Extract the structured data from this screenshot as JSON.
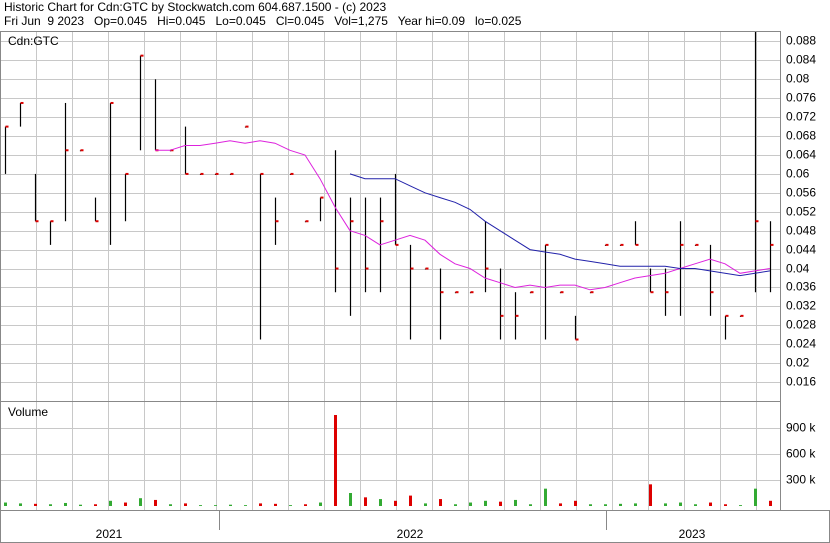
{
  "chart_data": {
    "type": "ohlc",
    "title": "Historic Chart for Cdn:GTC by Stockwatch.com 604.687.1500 - (c) 2023",
    "subtitle": "Fri Jun  9 2023   Op=0.045   Hi=0.045   Lo=0.045   Cl=0.045   Vol=1,275   Year hi=0.09   lo=0.025",
    "symbol_label": "Cdn:GTC",
    "volume_label": "Volume",
    "year_labels": [
      "2021",
      "2022",
      "2023"
    ],
    "high": [
      0.07,
      0.075,
      0.06,
      0.05,
      0.075,
      0.065,
      0.055,
      0.075,
      0.06,
      0.085,
      0.08,
      0.065,
      0.07,
      0.06,
      0.06,
      0.06,
      0.07,
      0.06,
      0.055,
      0.06,
      0.05,
      0.055,
      0.065,
      0.055,
      0.055,
      0.055,
      0.06,
      0.045,
      0.04,
      0.04,
      0.035,
      0.035,
      0.05,
      0.04,
      0.035,
      0.035,
      0.045,
      0.035,
      0.03,
      0.035,
      0.045,
      0.045,
      0.05,
      0.04,
      0.04,
      0.05,
      0.045,
      0.045,
      0.03,
      0.03,
      0.09,
      0.05
    ],
    "low": [
      0.06,
      0.07,
      0.05,
      0.045,
      0.05,
      0.065,
      0.05,
      0.045,
      0.05,
      0.065,
      0.065,
      0.065,
      0.06,
      0.06,
      0.06,
      0.06,
      0.07,
      0.025,
      0.045,
      0.06,
      0.05,
      0.05,
      0.035,
      0.03,
      0.035,
      0.035,
      0.045,
      0.025,
      0.04,
      0.025,
      0.035,
      0.035,
      0.035,
      0.025,
      0.025,
      0.035,
      0.025,
      0.035,
      0.025,
      0.035,
      0.045,
      0.045,
      0.045,
      0.035,
      0.03,
      0.03,
      0.045,
      0.03,
      0.025,
      0.03,
      0.035,
      0.035
    ],
    "close": [
      0.07,
      0.075,
      0.05,
      0.05,
      0.065,
      0.065,
      0.05,
      0.075,
      0.06,
      0.085,
      0.065,
      0.065,
      0.06,
      0.06,
      0.06,
      0.06,
      0.07,
      0.06,
      0.05,
      0.06,
      0.05,
      0.055,
      0.04,
      0.05,
      0.04,
      0.05,
      0.045,
      0.04,
      0.04,
      0.035,
      0.035,
      0.035,
      0.04,
      0.03,
      0.03,
      0.035,
      0.045,
      0.035,
      0.025,
      0.035,
      0.045,
      0.045,
      0.045,
      0.035,
      0.035,
      0.045,
      0.045,
      0.035,
      0.03,
      0.03,
      0.05,
      0.045
    ],
    "volume": [
      40000,
      30000,
      25000,
      20000,
      35000,
      15000,
      20000,
      60000,
      40000,
      90000,
      70000,
      20000,
      30000,
      10000,
      10000,
      15000,
      10000,
      30000,
      25000,
      10000,
      20000,
      40000,
      1050000,
      150000,
      100000,
      80000,
      60000,
      120000,
      30000,
      80000,
      20000,
      40000,
      60000,
      50000,
      70000,
      20000,
      200000,
      30000,
      60000,
      20000,
      20000,
      25000,
      30000,
      250000,
      30000,
      40000,
      20000,
      40000,
      20000,
      10000,
      200000,
      60000
    ],
    "series": [
      {
        "color": "#dd22dd",
        "values": [
          null,
          null,
          null,
          null,
          null,
          null,
          null,
          null,
          null,
          null,
          0.065,
          0.065,
          0.066,
          0.066,
          0.0665,
          0.067,
          0.0665,
          0.067,
          0.0665,
          0.065,
          0.064,
          0.059,
          0.053,
          0.048,
          0.047,
          0.045,
          0.046,
          0.047,
          0.046,
          0.043,
          0.041,
          0.04,
          0.038,
          0.037,
          0.036,
          0.0365,
          0.036,
          0.0365,
          0.0365,
          0.0355,
          0.036,
          0.037,
          0.038,
          0.0385,
          0.039,
          0.04,
          0.041,
          0.042,
          0.041,
          0.039,
          0.0395,
          0.04
        ]
      },
      {
        "color": "#2222aa",
        "values": [
          null,
          null,
          null,
          null,
          null,
          null,
          null,
          null,
          null,
          null,
          null,
          null,
          null,
          null,
          null,
          null,
          null,
          null,
          null,
          null,
          null,
          null,
          null,
          0.06,
          0.059,
          0.059,
          0.059,
          0.0575,
          0.056,
          0.055,
          0.054,
          0.0525,
          0.05,
          0.048,
          0.046,
          0.044,
          0.0435,
          0.043,
          0.042,
          0.0415,
          0.041,
          0.0405,
          0.0405,
          0.0405,
          0.0405,
          0.04,
          0.04,
          0.0395,
          0.039,
          0.0385,
          0.039,
          0.0395
        ]
      }
    ],
    "bar_color": "#000000",
    "close_color": "#dd0000",
    "up_color": "#33aa33",
    "down_color": "#dd0000",
    "ylim": [
      0.012,
      0.09
    ],
    "yticks": [
      0.016,
      0.02,
      0.024,
      0.028,
      0.032,
      0.036,
      0.04,
      0.044,
      0.048,
      0.052,
      0.056,
      0.06,
      0.064,
      0.068,
      0.072,
      0.076,
      0.08,
      0.084,
      0.088
    ],
    "vol_ylim": [
      0,
      1200000
    ],
    "vol_yticks": [
      {
        "value": 300000,
        "label": "300 k"
      },
      {
        "value": 600000,
        "label": "600 k"
      },
      {
        "value": 900000,
        "label": "900 k"
      }
    ],
    "grid": true
  }
}
